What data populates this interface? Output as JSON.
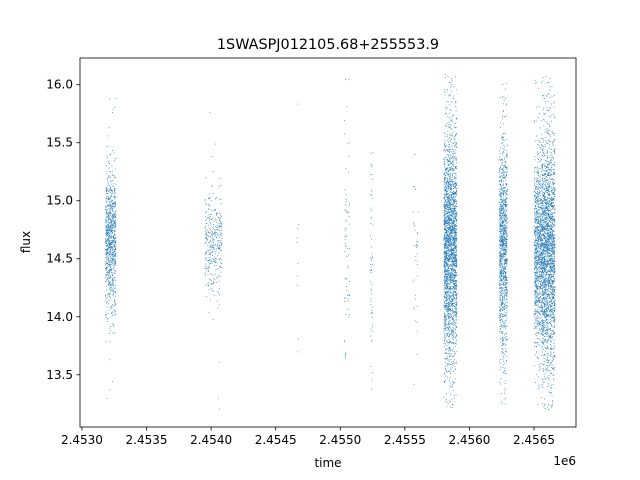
{
  "chart_data": {
    "type": "scatter",
    "title": "1SWASPJ012105.68+255553.9",
    "xlabel": "time",
    "ylabel": "flux",
    "x_offset_label": "1e6",
    "xlim": [
      2452985,
      2456825
    ],
    "ylim": [
      13.05,
      16.23
    ],
    "grid": false,
    "legend": "none",
    "point_color": "#1f77b4",
    "xticks": [
      2453000,
      2453500,
      2454000,
      2454500,
      2455000,
      2455500,
      2456000,
      2456500
    ],
    "xtick_labels": [
      "2.4530",
      "2.4535",
      "2.4540",
      "2.4545",
      "2.4550",
      "2.4555",
      "2.4560",
      "2.4565"
    ],
    "yticks": [
      13.5,
      14.0,
      14.5,
      15.0,
      15.5,
      16.0
    ],
    "ytick_labels": [
      "13.5",
      "14.0",
      "14.5",
      "15.0",
      "15.5",
      "16.0"
    ],
    "clusters": [
      {
        "x_range": [
          2453180,
          2453260
        ],
        "center": 14.65,
        "spread": 0.3,
        "min": 13.2,
        "max": 16.0,
        "n": 900
      },
      {
        "x_range": [
          2453950,
          2454080
        ],
        "center": 14.65,
        "spread": 0.22,
        "min": 13.2,
        "max": 15.9,
        "n": 350
      },
      {
        "x_range": [
          2454660,
          2454680
        ],
        "center": 14.6,
        "spread": 0.6,
        "min": 13.7,
        "max": 15.9,
        "n": 10
      },
      {
        "x_range": [
          2455030,
          2455070
        ],
        "center": 14.5,
        "spread": 0.6,
        "min": 13.65,
        "max": 16.05,
        "n": 70
      },
      {
        "x_range": [
          2455230,
          2455250
        ],
        "center": 14.5,
        "spread": 0.5,
        "min": 13.35,
        "max": 15.45,
        "n": 60
      },
      {
        "x_range": [
          2455560,
          2455600
        ],
        "center": 14.7,
        "spread": 0.55,
        "min": 13.4,
        "max": 15.75,
        "n": 40
      },
      {
        "x_range": [
          2455800,
          2455900
        ],
        "center": 14.6,
        "spread": 0.5,
        "min": 13.22,
        "max": 16.1,
        "n": 2500
      },
      {
        "x_range": [
          2456230,
          2456290
        ],
        "center": 14.6,
        "spread": 0.45,
        "min": 13.22,
        "max": 16.08,
        "n": 1200
      },
      {
        "x_range": [
          2456500,
          2456560
        ],
        "center": 14.55,
        "spread": 0.42,
        "min": 13.2,
        "max": 16.05,
        "n": 1000
      },
      {
        "x_range": [
          2456560,
          2456660
        ],
        "center": 14.55,
        "spread": 0.5,
        "min": 13.2,
        "max": 16.1,
        "n": 2200
      }
    ]
  }
}
